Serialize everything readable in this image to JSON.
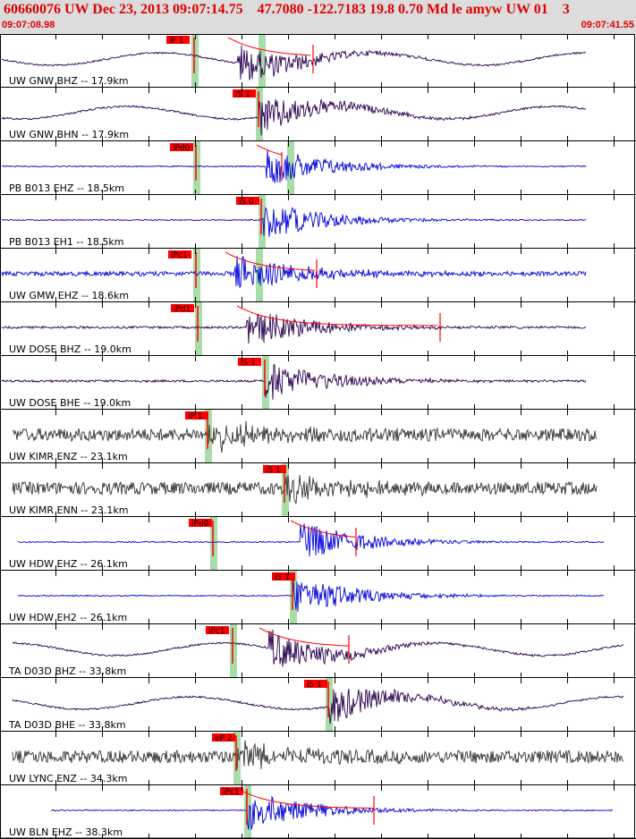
{
  "header": {
    "title": "60660076 UW Dec 23, 2013 09:07:14.75    47.7080 -122.7183 19.8 0.70 Md le amyw UW 01    3",
    "start_time": "09:07:08.98",
    "end_time": "09:07:41.55"
  },
  "colors": {
    "header_bg": "#dcdcdc",
    "header_text": "#e00000",
    "trace_blue": "#0000dd",
    "trace_purple": "#2a0050",
    "trace_gray": "#333333",
    "pick_bg": "#ff0000",
    "pick_band": "#a8dca8",
    "coda": "#ff0000"
  },
  "traces": [
    {
      "label": "UW GNW BHZ -- 17.9km",
      "pick": "iP 1",
      "color": "purple",
      "style": "long"
    },
    {
      "label": "UW GNW BHN -- 17.9km",
      "pick": "iS 1",
      "color": "purple",
      "style": "long"
    },
    {
      "label": "PB B013 EHZ -- 18.5km",
      "pick": "iPd0",
      "color": "blue",
      "style": "quiet"
    },
    {
      "label": "PB B013 EH1 -- 18.5km",
      "pick": "iS 0",
      "color": "blue",
      "style": "quiet"
    },
    {
      "label": "UW GMW EHZ -- 18.6km",
      "pick": "iPc1",
      "color": "blue",
      "style": "busy"
    },
    {
      "label": "UW DOSE BHZ -- 19.0km",
      "pick": "iPd1",
      "color": "purple",
      "style": "medium"
    },
    {
      "label": "UW DOSE BHE -- 19.0km",
      "pick": "iS 1",
      "color": "purple",
      "style": "medium"
    },
    {
      "label": "UW KIMR ENZ -- 23.1km",
      "pick": "iP 1",
      "color": "gray",
      "style": "noisy"
    },
    {
      "label": "UW KIMR ENN -- 23.1km",
      "pick": "iS 1",
      "color": "gray",
      "style": "noisy"
    },
    {
      "label": "UW HDW EHZ -- 26.1km",
      "pick": "iPd0",
      "color": "blue",
      "style": "quiet"
    },
    {
      "label": "UW HDW EH2 -- 26.1km",
      "pick": "iS 1",
      "color": "blue",
      "style": "quiet"
    },
    {
      "label": "TA D03D BHZ -- 33.8km",
      "pick": "iPc1",
      "color": "purple",
      "style": "long"
    },
    {
      "label": "TA D03D BHE -- 33.8km",
      "pick": "iS 1",
      "color": "purple",
      "style": "long"
    },
    {
      "label": "UW LYNC ENZ -- 34.3km",
      "pick": "eP 2",
      "color": "gray",
      "style": "noisy"
    },
    {
      "label": "UW BLN EHZ -- 38.3km",
      "pick": "iPc1",
      "color": "blue",
      "style": "quiet"
    }
  ]
}
